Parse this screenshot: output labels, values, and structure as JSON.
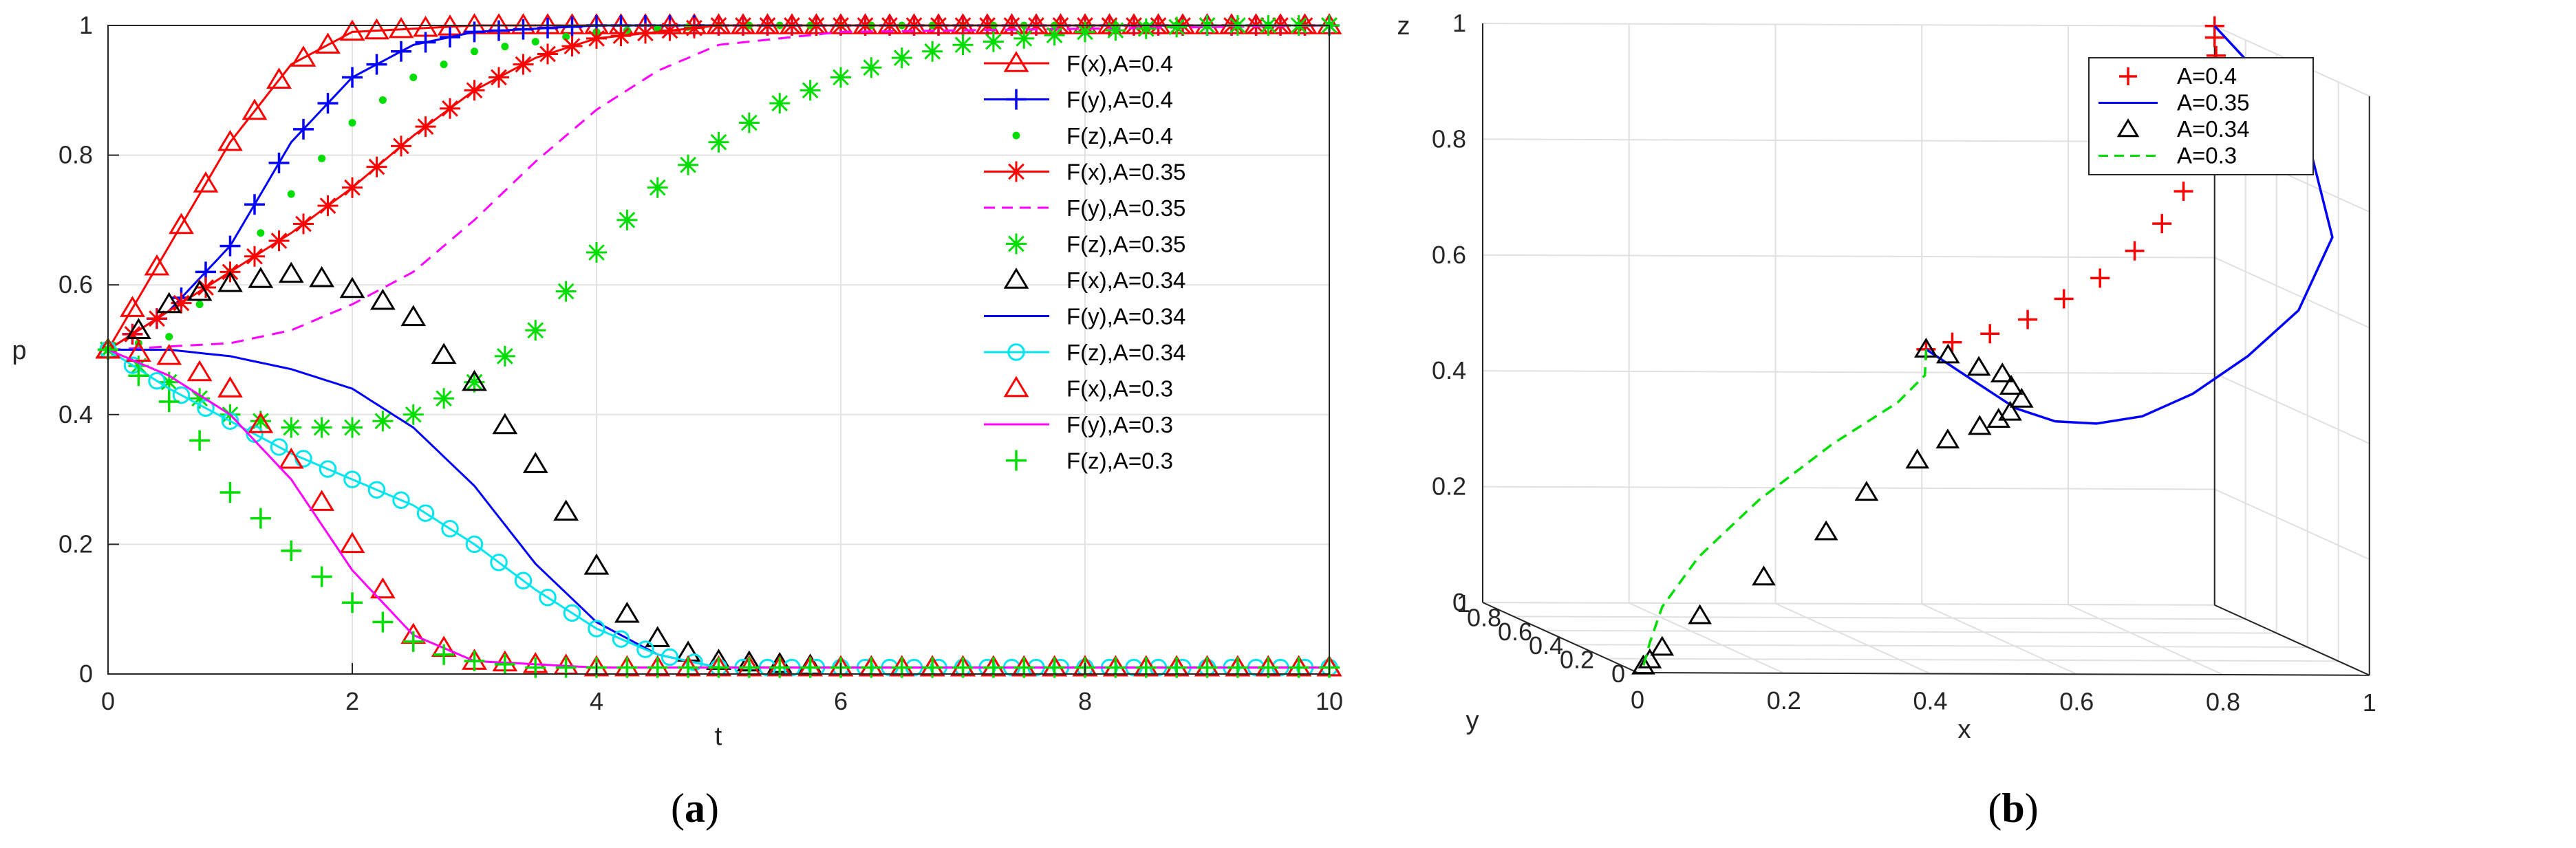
{
  "chart_data": [
    {
      "type": "line",
      "panel_label": "(a)",
      "caption_letter": "a",
      "xlabel": "t",
      "ylabel": "p",
      "xlim": [
        0,
        10
      ],
      "ylim": [
        0,
        1
      ],
      "xticks": [
        0,
        2,
        4,
        6,
        8,
        10
      ],
      "yticks": [
        0,
        0.2,
        0.4,
        0.6,
        0.8,
        1
      ],
      "grid": true,
      "legend_position": "top-right",
      "series": [
        {
          "name": "F(x),A=0.4",
          "color": "#ff0000",
          "line": "solid",
          "marker": "triangle",
          "x": [
            0,
            0.5,
            1,
            1.5,
            2,
            3,
            4,
            6,
            8,
            10
          ],
          "y": [
            0.5,
            0.66,
            0.82,
            0.94,
            0.99,
            1,
            1,
            1,
            1,
            1
          ]
        },
        {
          "name": "F(y),A=0.4",
          "color": "#0000ff",
          "line": "solid",
          "marker": "plus",
          "x": [
            0,
            0.5,
            1,
            1.5,
            2,
            2.5,
            3,
            4,
            6,
            10
          ],
          "y": [
            0.5,
            0.56,
            0.66,
            0.82,
            0.92,
            0.97,
            0.99,
            1,
            1,
            1
          ]
        },
        {
          "name": "F(z),A=0.4",
          "color": "#00dd00",
          "line": "none",
          "marker": "dot",
          "x": [
            0,
            0.5,
            1,
            1.5,
            2,
            2.5,
            3,
            4,
            5,
            6,
            10
          ],
          "y": [
            0.5,
            0.52,
            0.62,
            0.74,
            0.85,
            0.92,
            0.96,
            0.99,
            1,
            1,
            1
          ]
        },
        {
          "name": "F(x),A=0.35",
          "color": "#ff0000",
          "line": "solid",
          "marker": "asterisk",
          "x": [
            0,
            0.5,
            1,
            1.5,
            2,
            2.5,
            3,
            3.5,
            4,
            5,
            6,
            10
          ],
          "y": [
            0.5,
            0.56,
            0.62,
            0.68,
            0.75,
            0.83,
            0.9,
            0.95,
            0.98,
            1,
            1,
            1
          ]
        },
        {
          "name": "F(y),A=0.35",
          "color": "#ff00ff",
          "line": "dashed",
          "marker": "none",
          "x": [
            0,
            1,
            1.5,
            2,
            2.5,
            3,
            3.5,
            4,
            4.5,
            5,
            6,
            10
          ],
          "y": [
            0.5,
            0.51,
            0.53,
            0.57,
            0.62,
            0.7,
            0.79,
            0.87,
            0.93,
            0.97,
            0.99,
            1
          ]
        },
        {
          "name": "F(z),A=0.35",
          "color": "#00dd00",
          "line": "none",
          "marker": "asterisk",
          "x": [
            0,
            0.5,
            1,
            1.5,
            2,
            2.5,
            3,
            3.5,
            4,
            4.5,
            5,
            5.5,
            6,
            6.5,
            7,
            8,
            9,
            10
          ],
          "y": [
            0.5,
            0.45,
            0.4,
            0.38,
            0.38,
            0.4,
            0.45,
            0.53,
            0.65,
            0.75,
            0.82,
            0.88,
            0.92,
            0.95,
            0.97,
            0.99,
            1,
            1
          ]
        },
        {
          "name": "F(x),A=0.34",
          "color": "#000000",
          "line": "none",
          "marker": "triangle",
          "x": [
            0,
            0.25,
            0.5,
            0.9,
            1.3,
            1.6,
            1.9,
            2.2,
            2.5,
            2.7,
            3,
            3.3,
            3.6,
            3.9,
            4.2,
            4.6,
            5,
            6,
            7,
            8,
            9,
            10
          ],
          "y": [
            0.5,
            0.53,
            0.57,
            0.6,
            0.61,
            0.62,
            0.6,
            0.58,
            0.55,
            0.5,
            0.45,
            0.37,
            0.3,
            0.2,
            0.1,
            0.04,
            0.02,
            0.01,
            0.01,
            0.01,
            0.01,
            0.01
          ]
        },
        {
          "name": "F(y),A=0.34",
          "color": "#0000ff",
          "line": "solid",
          "marker": "none",
          "x": [
            0,
            0.5,
            1,
            1.5,
            2,
            2.5,
            3,
            3.5,
            4,
            4.5,
            5,
            6,
            10
          ],
          "y": [
            0.5,
            0.5,
            0.49,
            0.47,
            0.44,
            0.38,
            0.29,
            0.17,
            0.08,
            0.03,
            0.01,
            0.01,
            0.01
          ]
        },
        {
          "name": "F(z),A=0.34",
          "color": "#00e5ee",
          "line": "solid",
          "marker": "circle",
          "x": [
            0,
            0.5,
            1,
            1.5,
            2,
            2.5,
            3,
            3.5,
            4,
            4.5,
            5,
            6,
            10
          ],
          "y": [
            0.5,
            0.44,
            0.39,
            0.34,
            0.3,
            0.26,
            0.2,
            0.13,
            0.07,
            0.03,
            0.01,
            0.01,
            0.01
          ]
        },
        {
          "name": "F(x),A=0.3",
          "color": "#ff0000",
          "line": "none",
          "marker": "triangle",
          "x": [
            0,
            0.5,
            1,
            1.5,
            2,
            2.5,
            3,
            4,
            5,
            6,
            8,
            10
          ],
          "y": [
            0.5,
            0.49,
            0.44,
            0.33,
            0.2,
            0.06,
            0.02,
            0.01,
            0.01,
            0.01,
            0.01,
            0.01
          ]
        },
        {
          "name": "F(y),A=0.3",
          "color": "#ff00ff",
          "line": "solid",
          "marker": "none",
          "x": [
            0,
            0.5,
            1,
            1.5,
            2,
            2.5,
            3,
            4,
            6,
            10
          ],
          "y": [
            0.5,
            0.46,
            0.4,
            0.3,
            0.16,
            0.06,
            0.02,
            0.01,
            0.01,
            0.01
          ]
        },
        {
          "name": "F(z),A=0.3",
          "color": "#00dd00",
          "line": "none",
          "marker": "plus",
          "x": [
            0,
            0.25,
            0.5,
            0.75,
            1,
            1.25,
            1.5,
            1.75,
            2,
            2.25,
            2.5,
            2.75,
            3,
            3.5,
            4,
            5,
            6,
            8,
            10
          ],
          "y": [
            0.5,
            0.46,
            0.42,
            0.36,
            0.28,
            0.24,
            0.19,
            0.15,
            0.11,
            0.08,
            0.05,
            0.03,
            0.02,
            0.01,
            0.01,
            0.01,
            0.01,
            0.01,
            0.01
          ]
        }
      ]
    },
    {
      "type": "line3d",
      "panel_label": "(b)",
      "caption_letter": "b",
      "xlabel": "x",
      "ylabel": "y",
      "zlabel": "z",
      "xlim": [
        0,
        1
      ],
      "ylim": [
        0,
        1
      ],
      "zlim": [
        0,
        1
      ],
      "xticks": [
        0,
        0.2,
        0.4,
        0.6,
        0.8,
        1
      ],
      "yticks": [
        0,
        0.2,
        0.4,
        0.6,
        0.8,
        1
      ],
      "zticks": [
        0,
        0.2,
        0.4,
        0.6,
        0.8,
        1
      ],
      "grid": true,
      "legend_position": "top-right",
      "series": [
        {
          "name": "A=0.4",
          "color": "#ff0000",
          "line": "none",
          "marker": "plus",
          "x": [
            0.5,
            0.54,
            0.6,
            0.66,
            0.72,
            0.78,
            0.84,
            0.89,
            0.93,
            0.96,
            0.985,
            0.995,
            1,
            1,
            1,
            1
          ],
          "y": [
            0.5,
            0.52,
            0.56,
            0.6,
            0.65,
            0.7,
            0.76,
            0.82,
            0.87,
            0.92,
            0.96,
            0.98,
            0.99,
            1,
            1,
            1
          ],
          "z": [
            0.5,
            0.51,
            0.52,
            0.54,
            0.57,
            0.6,
            0.64,
            0.68,
            0.73,
            0.78,
            0.84,
            0.9,
            0.95,
            0.98,
            1,
            1
          ]
        },
        {
          "name": "A=0.35",
          "color": "#0000ff",
          "line": "solid",
          "marker": "none",
          "x": [
            0.5,
            0.56,
            0.62,
            0.67,
            0.72,
            0.77,
            0.82,
            0.87,
            0.92,
            0.96,
            0.985,
            1,
            1
          ],
          "y": [
            0.5,
            0.5,
            0.49,
            0.47,
            0.44,
            0.38,
            0.29,
            0.17,
            0.08,
            0.05,
            0.3,
            0.7,
            1
          ],
          "z": [
            0.5,
            0.45,
            0.4,
            0.38,
            0.38,
            0.4,
            0.45,
            0.53,
            0.62,
            0.75,
            0.86,
            0.95,
            1
          ]
        },
        {
          "name": "A=0.34",
          "color": "#000000",
          "line": "none",
          "marker": "triangle",
          "x": [
            0.5,
            0.53,
            0.57,
            0.6,
            0.61,
            0.62,
            0.6,
            0.58,
            0.55,
            0.5,
            0.45,
            0.37,
            0.3,
            0.2,
            0.1,
            0.04,
            0.02,
            0.01
          ],
          "y": [
            0.5,
            0.5,
            0.49,
            0.48,
            0.47,
            0.45,
            0.43,
            0.41,
            0.39,
            0.36,
            0.32,
            0.27,
            0.2,
            0.13,
            0.07,
            0.03,
            0.015,
            0.01
          ],
          "z": [
            0.5,
            0.49,
            0.47,
            0.46,
            0.44,
            0.42,
            0.4,
            0.39,
            0.38,
            0.36,
            0.33,
            0.28,
            0.22,
            0.15,
            0.09,
            0.04,
            0.02,
            0.01
          ]
        },
        {
          "name": "A=0.3",
          "color": "#00dd00",
          "line": "dashed",
          "marker": "none",
          "x": [
            0.5,
            0.49,
            0.44,
            0.33,
            0.2,
            0.1,
            0.04,
            0.02,
            0.01
          ],
          "y": [
            0.5,
            0.46,
            0.4,
            0.3,
            0.16,
            0.08,
            0.03,
            0.015,
            0.01
          ],
          "z": [
            0.5,
            0.46,
            0.42,
            0.36,
            0.28,
            0.19,
            0.11,
            0.05,
            0.01
          ]
        }
      ]
    }
  ]
}
